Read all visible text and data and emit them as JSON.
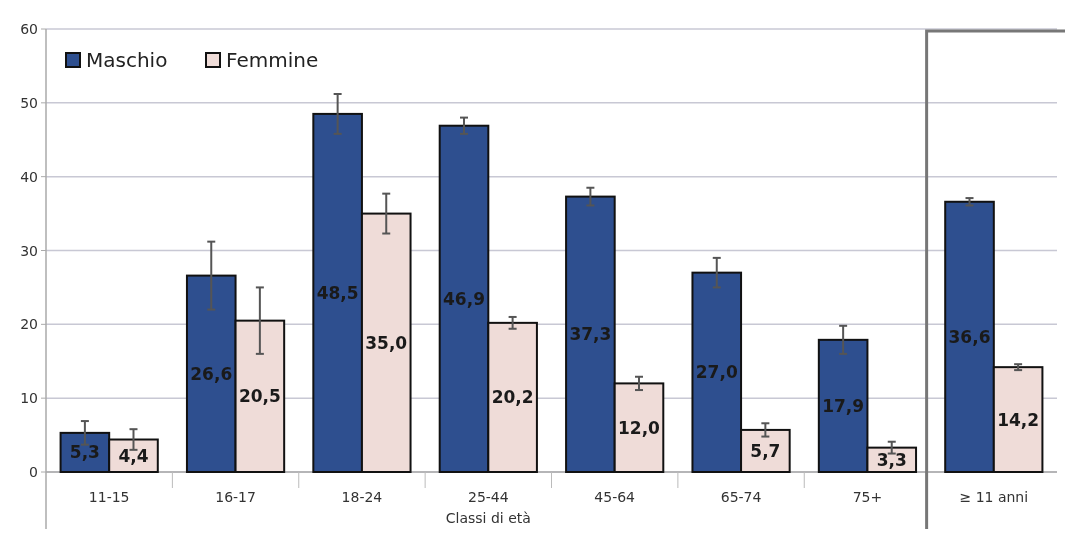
{
  "chart_data": {
    "type": "bar",
    "xlabel": "Classi di età",
    "categories": [
      "11-15",
      "16-17",
      "18-24",
      "25-44",
      "45-64",
      "65-74",
      "75+",
      "≥ 11 anni"
    ],
    "series": [
      {
        "name": "Maschio",
        "color": "#2e4f8f",
        "values": [
          5.3,
          26.6,
          48.5,
          46.9,
          37.3,
          27.0,
          17.9,
          36.6
        ],
        "errors": [
          1.6,
          4.6,
          2.7,
          1.1,
          1.2,
          2.0,
          1.9,
          0.5
        ],
        "value_labels": [
          "5,3",
          "26,6",
          "48,5",
          "46,9",
          "37,3",
          "27,0",
          "17,9",
          "36,6"
        ]
      },
      {
        "name": "Femmine",
        "color": "#efdcd8",
        "values": [
          4.4,
          20.5,
          35.0,
          20.2,
          12.0,
          5.7,
          3.3,
          14.2
        ],
        "errors": [
          1.4,
          4.5,
          2.7,
          0.8,
          0.9,
          0.9,
          0.8,
          0.4
        ],
        "value_labels": [
          "4,4",
          "20,5",
          "35,0",
          "20,2",
          "12,0",
          "5,7",
          "3,3",
          "14,2"
        ]
      }
    ],
    "ylim": [
      0,
      60
    ],
    "yticks": [
      0,
      10,
      20,
      30,
      40,
      50,
      60
    ],
    "grid": "y",
    "legend": "top left"
  }
}
